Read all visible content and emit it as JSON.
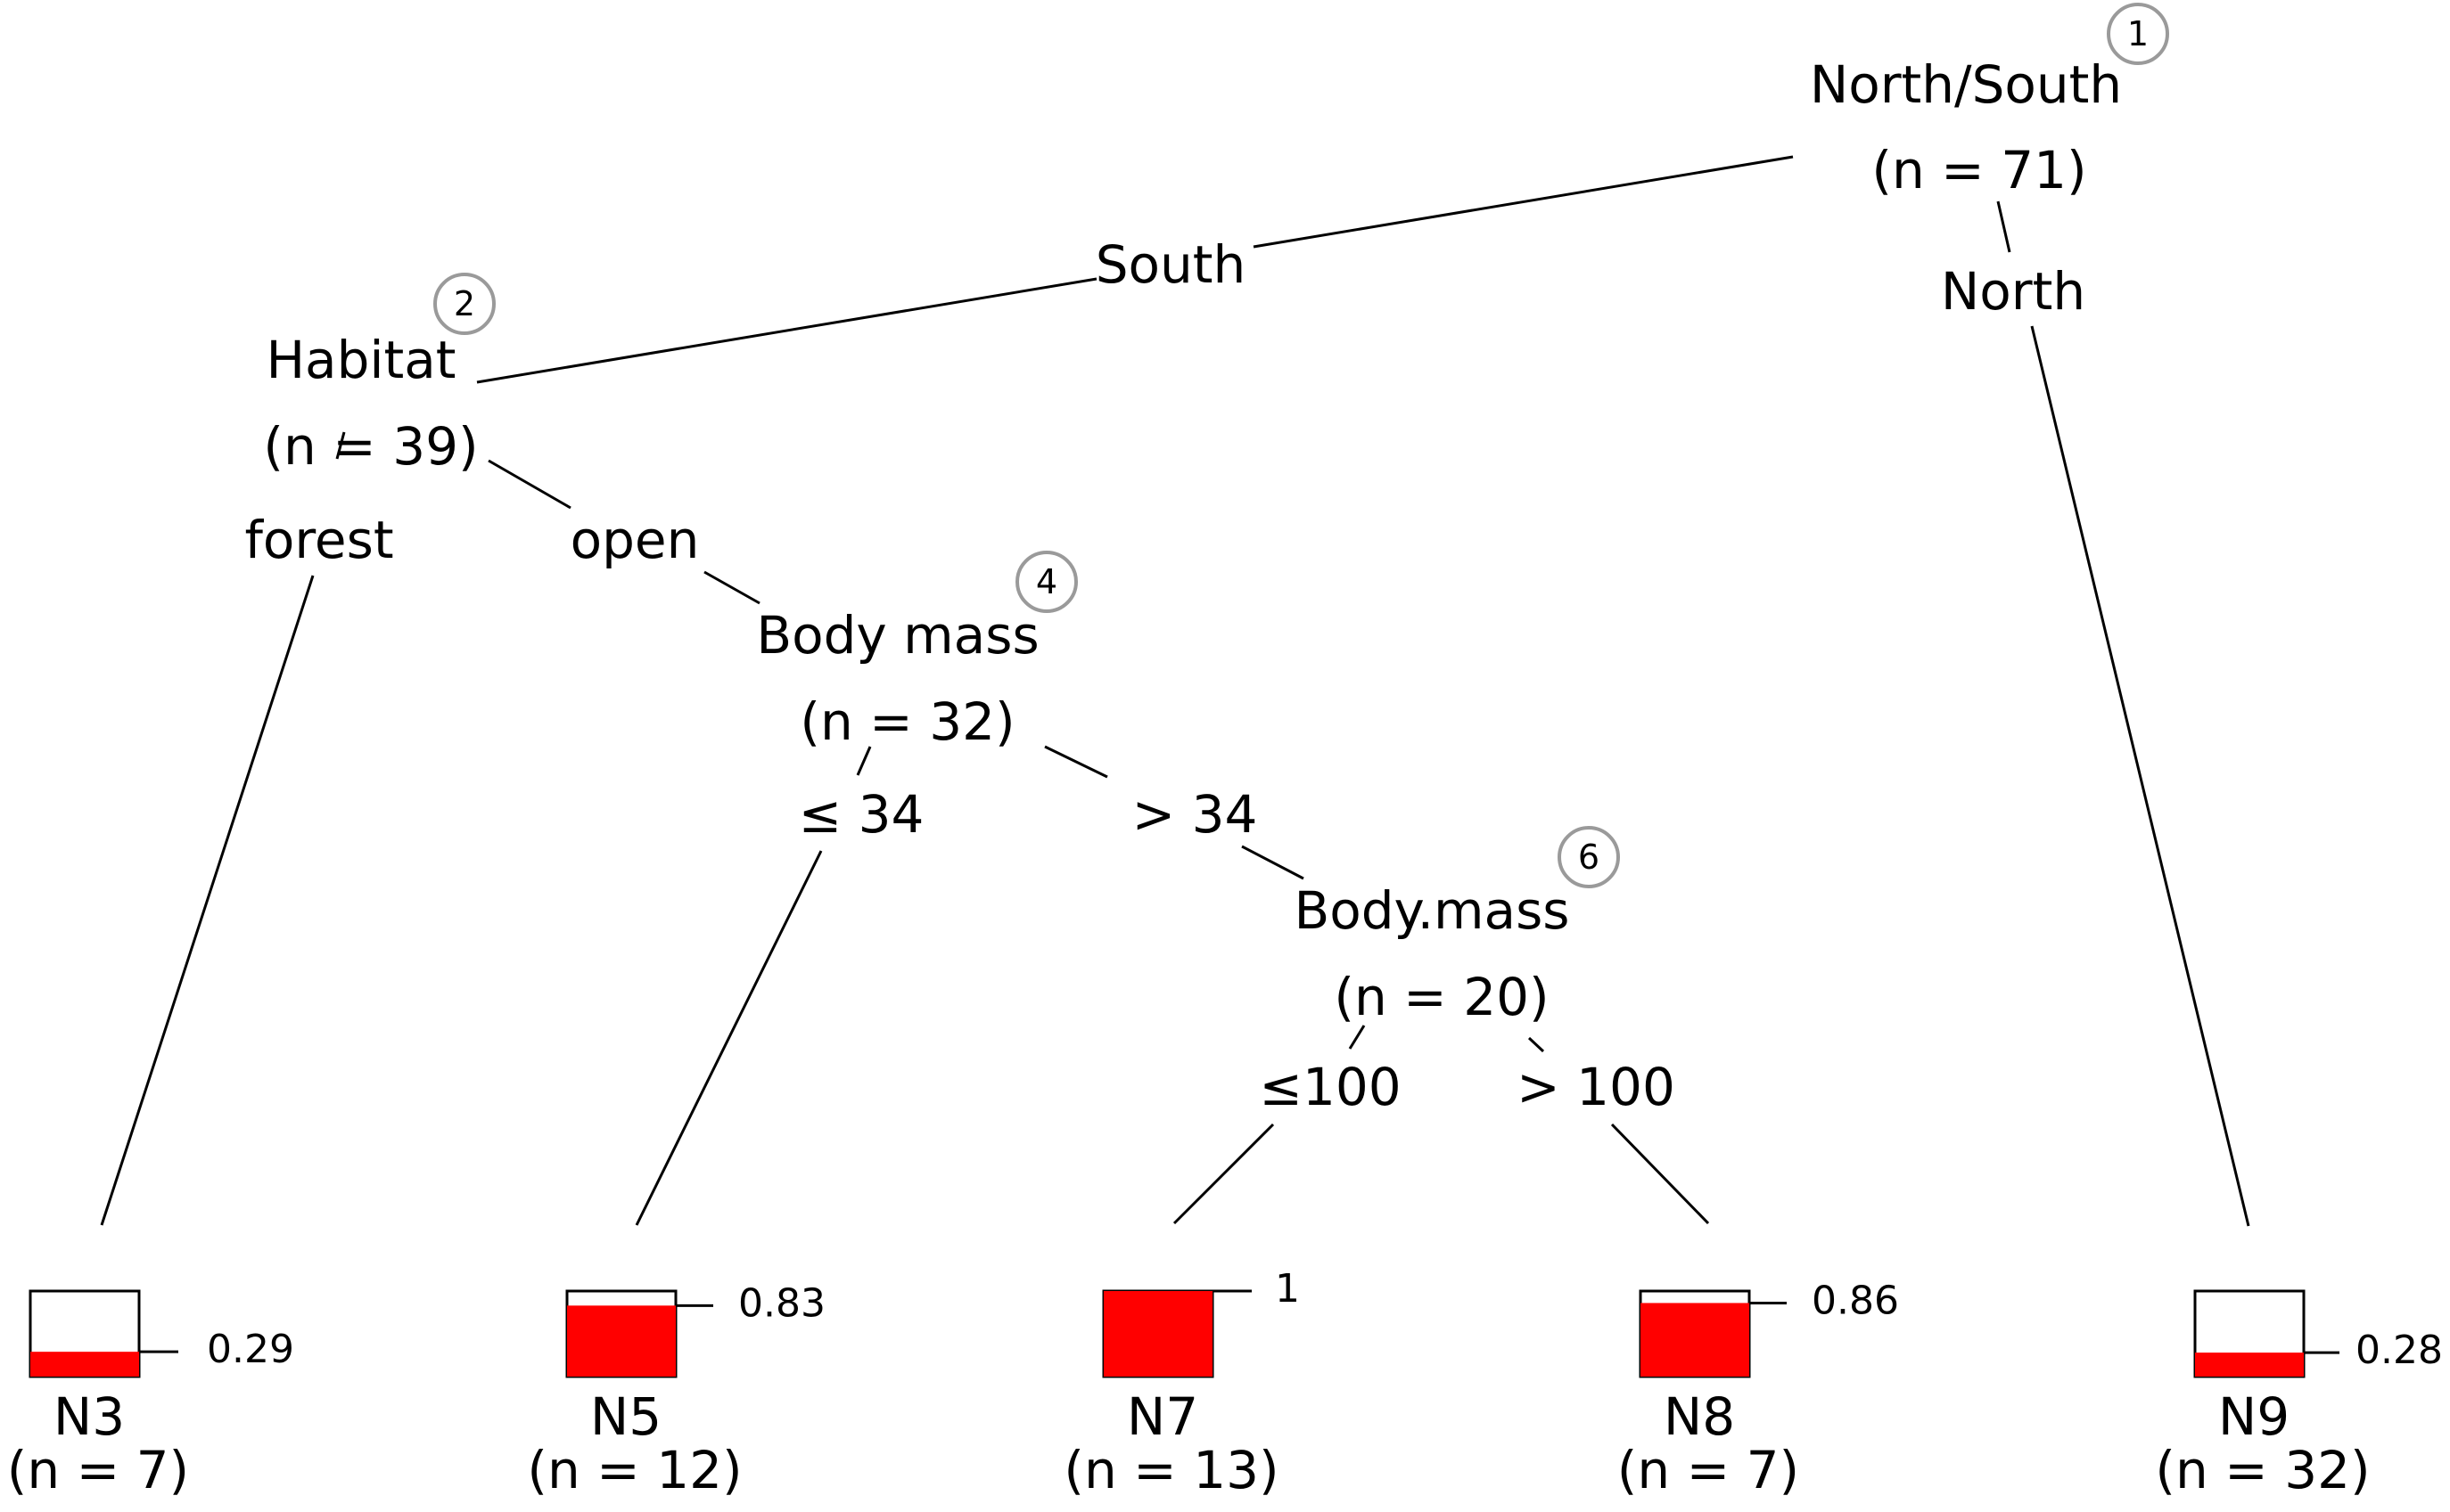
{
  "nodes": {
    "n1": {
      "id": "1",
      "var": "North/South",
      "n": "(n = 71)"
    },
    "n2": {
      "id": "2",
      "var": "Habitat",
      "n": "(n = 39)"
    },
    "n4": {
      "id": "4",
      "var": "Body mass",
      "n": "(n = 32)"
    },
    "n6": {
      "id": "6",
      "var": "Body.mass",
      "n": "(n = 20)"
    }
  },
  "edges": {
    "south": "South",
    "north": "North",
    "forest": "forest",
    "open": "open",
    "le34": "≤ 34",
    "gt34": "> 34",
    "le100": "≤100",
    "gt100": "> 100"
  },
  "leaves": [
    {
      "name": "N3",
      "n": "(n = 7)",
      "value": 0.29,
      "label": "0.29"
    },
    {
      "name": "N5",
      "n": "(n = 12)",
      "value": 0.83,
      "label": "0.83"
    },
    {
      "name": "N7",
      "n": "(n = 13)",
      "value": 1,
      "label": "1"
    },
    {
      "name": "N8",
      "n": "(n = 7)",
      "value": 0.86,
      "label": "0.86"
    },
    {
      "name": "N9",
      "n": "(n = 32)",
      "value": 0.28,
      "label": "0.28"
    }
  ],
  "colors": {
    "fill": "#ff0000",
    "circle": "#9a9a9a"
  }
}
